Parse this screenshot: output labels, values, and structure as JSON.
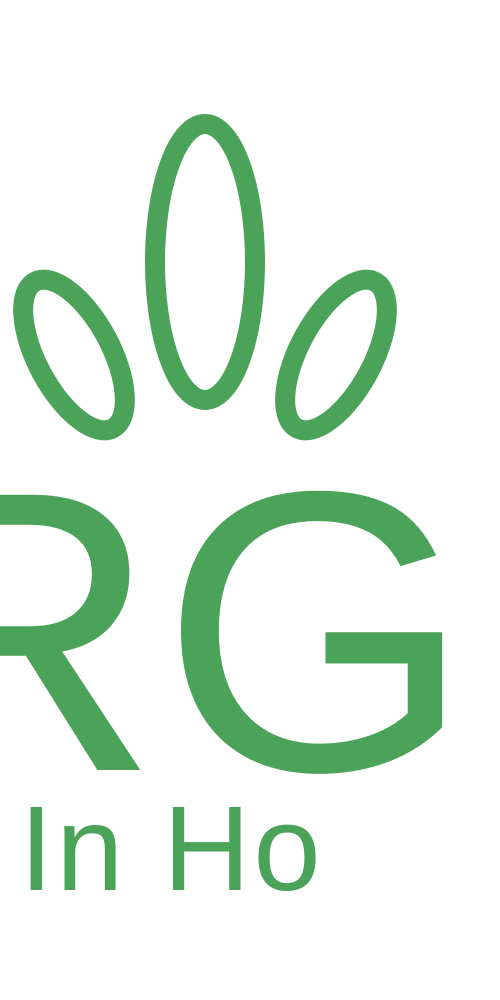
{
  "logo": {
    "wordmark": "RGR",
    "tagline": "ado In Ho",
    "brand_color": "#4aa358",
    "background": "#ffffff",
    "icon": "leaf-sprout-icon"
  }
}
